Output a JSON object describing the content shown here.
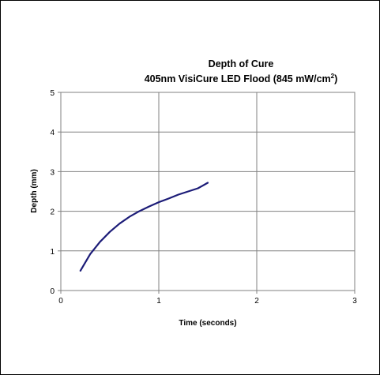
{
  "chart_data": {
    "type": "line",
    "title": "Depth of Cure",
    "subtitle_main": "405nm VisiCure LED Flood (845 mW/cm",
    "subtitle_sup": "2",
    "subtitle_end": ")",
    "xlabel": "Time (seconds)",
    "ylabel": "Depth (mm)",
    "xlim": [
      0,
      3
    ],
    "ylim": [
      0,
      5
    ],
    "xticks": [
      "0",
      "1",
      "2",
      "3"
    ],
    "yticks": [
      "0",
      "1",
      "2",
      "3",
      "4",
      "5"
    ],
    "grid": true,
    "legend": "none",
    "series": [
      {
        "color": "#1c1c78",
        "x": [
          0.2,
          0.3,
          0.4,
          0.5,
          0.6,
          0.7,
          0.8,
          0.9,
          1.0,
          1.1,
          1.2,
          1.3,
          1.4,
          1.5
        ],
        "y": [
          0.5,
          0.92,
          1.23,
          1.48,
          1.69,
          1.86,
          2.0,
          2.12,
          2.23,
          2.32,
          2.42,
          2.5,
          2.58,
          2.72
        ]
      }
    ]
  }
}
